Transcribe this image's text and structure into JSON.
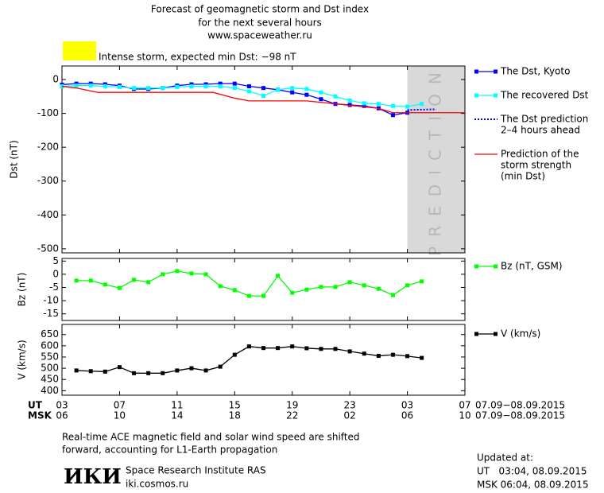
{
  "header": {
    "title_lines": [
      "Forecast of geomagnetic storm and Dst index",
      "for the next several hours",
      "www.spaceweather.ru"
    ],
    "alert": {
      "text": "Intense storm, expected min Dst: −98 nT",
      "color": "#ffff00"
    }
  },
  "chart_data": [
    {
      "type": "line",
      "y_label": "Dst (nT)",
      "ylim": [
        -512,
        40
      ],
      "yticks": [
        0,
        -100,
        -200,
        -300,
        -400,
        -500
      ],
      "prediction_band": [
        24,
        28
      ],
      "prediction_label": "PREDICTION",
      "prediction_color": "#d9d9d9",
      "series": [
        {
          "name": [
            "The Dst, Kyoto"
          ],
          "color": "#0000ff",
          "marker": "square",
          "dash": "solid",
          "x": [
            0,
            1,
            2,
            3,
            4,
            5,
            6,
            7,
            8,
            9,
            10,
            11,
            12,
            13,
            14,
            15,
            16,
            17,
            18,
            19,
            20,
            21,
            22,
            23,
            24
          ],
          "values": [
            -15,
            -12,
            -12,
            -14,
            -18,
            -28,
            -28,
            -25,
            -18,
            -14,
            -14,
            -12,
            -12,
            -20,
            -25,
            -30,
            -38,
            -45,
            -58,
            -72,
            -75,
            -78,
            -85,
            -105,
            -98
          ]
        },
        {
          "name": [
            "The recovered Dst"
          ],
          "color": "#00ffff",
          "marker": "square",
          "dash": "solid",
          "x": [
            0,
            1,
            2,
            3,
            4,
            5,
            6,
            7,
            8,
            9,
            10,
            11,
            12,
            13,
            14,
            15,
            16,
            17,
            18,
            19,
            20,
            21,
            22,
            23,
            24,
            25
          ],
          "values": [
            -20,
            -18,
            -18,
            -20,
            -22,
            -25,
            -25,
            -25,
            -22,
            -20,
            -20,
            -20,
            -25,
            -35,
            -48,
            -30,
            -25,
            -28,
            -38,
            -50,
            -62,
            -70,
            -72,
            -78,
            -80,
            -72
          ]
        },
        {
          "name": [
            "The Dst prediction",
            "2–4 hours ahead"
          ],
          "color": "#0000ff",
          "marker": "none",
          "dash": "dotted",
          "x": [
            24,
            26
          ],
          "values": [
            -90,
            -88
          ]
        },
        {
          "name": [
            "Prediction of the",
            "storm strength",
            "(min Dst)"
          ],
          "color": "#ff0000",
          "marker": "none",
          "dash": "solid",
          "x": [
            0,
            1,
            2.5,
            10.5,
            12,
            13,
            17,
            22,
            23,
            28
          ],
          "values": [
            -20,
            -25,
            -38,
            -38,
            -55,
            -63,
            -63,
            -85,
            -98,
            -98
          ]
        }
      ]
    },
    {
      "type": "line",
      "y_label": "Bz (nT)",
      "ylim": [
        -17.5,
        6
      ],
      "yticks": [
        5,
        0,
        -5,
        -10,
        -15
      ],
      "series": [
        {
          "name": [
            "Bz (nT, GSM)"
          ],
          "color": "#00ff00",
          "marker": "square",
          "dash": "solid",
          "x": [
            1,
            2,
            3,
            4,
            5,
            6,
            7,
            8,
            9,
            10,
            11,
            12,
            13,
            14,
            15,
            16,
            17,
            18,
            19,
            20,
            21,
            22,
            23,
            24,
            25
          ],
          "values": [
            -2.4,
            -2.4,
            -3.9,
            -5.2,
            -2.1,
            -3.0,
            0.0,
            1.2,
            0.3,
            0.0,
            -4.5,
            -6.0,
            -8.2,
            -8.2,
            -0.6,
            -7.0,
            -5.8,
            -4.8,
            -4.8,
            -3.0,
            -4.2,
            -5.5,
            -7.9,
            -4.2,
            -2.7
          ]
        }
      ]
    },
    {
      "type": "line",
      "y_label": "V (km/s)",
      "ylim": [
        380,
        695
      ],
      "yticks": [
        650,
        600,
        550,
        500,
        450,
        400
      ],
      "xlim": [
        0,
        28
      ],
      "xticks": [
        {
          "value": 0,
          "label": "03"
        },
        {
          "value": 4,
          "label": "07"
        },
        {
          "value": 8,
          "label": "11"
        },
        {
          "value": 12,
          "label": "15"
        },
        {
          "value": 16,
          "label": "19"
        },
        {
          "value": 20,
          "label": "23"
        },
        {
          "value": 24,
          "label": "03"
        },
        {
          "value": 28,
          "label": "07"
        }
      ],
      "msk_tick_labels": [
        "06",
        "10",
        "14",
        "18",
        "22",
        "02",
        "06",
        "10"
      ],
      "ut_label": "UT",
      "msk_label": "MSK",
      "ut_dates": "07.09−08.09.2015",
      "msk_dates": "07.09−08.09.2015",
      "series": [
        {
          "name": [
            "V (km/s)"
          ],
          "color": "#000000",
          "marker": "square",
          "dash": "solid",
          "x": [
            1,
            2,
            3,
            4,
            5,
            6,
            7,
            8,
            9,
            10,
            11,
            12,
            13,
            14,
            15,
            16,
            17,
            18,
            19,
            20,
            21,
            22,
            23,
            24,
            25
          ],
          "values": [
            490,
            487,
            485,
            505,
            478,
            478,
            478,
            490,
            500,
            490,
            507,
            560,
            597,
            590,
            590,
            597,
            589,
            586,
            586,
            575,
            565,
            555,
            560,
            554,
            546
          ]
        }
      ]
    }
  ],
  "footer": {
    "note_lines": [
      "Real-time ACE magnetic field and solar wind speed are shifted",
      "forward, accounting for L1-Earth propagation"
    ],
    "logo": "ИКИ",
    "institute": "Space Research Institute RAS",
    "site": "iki.cosmos.ru",
    "updated_label": "Updated at:",
    "updated_ut": "UT   03:04, 08.09.2015",
    "updated_msk": "MSK 06:04, 08.09.2015"
  }
}
